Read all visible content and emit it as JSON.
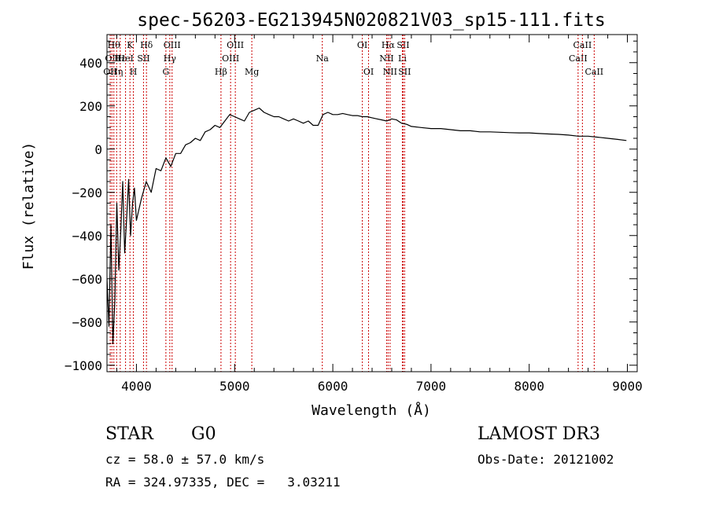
{
  "chart_data": {
    "type": "line",
    "title": "spec-56203-EG213945N020821V03_sp15-111.fits",
    "xlabel": "Wavelength (Å)",
    "ylabel": "Flux (relative)",
    "xlim": [
      3700,
      9100
    ],
    "ylim": [
      -1030,
      530
    ],
    "xticks": [
      4000,
      5000,
      6000,
      7000,
      8000,
      9000
    ],
    "yticks": [
      -1000,
      -800,
      -600,
      -400,
      -200,
      0,
      200,
      400
    ],
    "grid": false,
    "line_color": "#000000",
    "marker_color": "#cc0000",
    "series": [
      {
        "name": "",
        "x": [
          3700,
          3720,
          3740,
          3760,
          3780,
          3800,
          3820,
          3840,
          3860,
          3880,
          3900,
          3920,
          3940,
          3960,
          3980,
          4000,
          4050,
          4100,
          4150,
          4200,
          4250,
          4300,
          4350,
          4400,
          4450,
          4500,
          4550,
          4600,
          4650,
          4700,
          4750,
          4800,
          4850,
          4900,
          4950,
          5000,
          5050,
          5100,
          5150,
          5200,
          5250,
          5300,
          5350,
          5400,
          5450,
          5500,
          5550,
          5600,
          5650,
          5700,
          5750,
          5800,
          5850,
          5900,
          5950,
          6000,
          6050,
          6100,
          6150,
          6200,
          6250,
          6300,
          6350,
          6400,
          6450,
          6500,
          6550,
          6600,
          6650,
          6700,
          6750,
          6800,
          6900,
          7000,
          7100,
          7200,
          7300,
          7400,
          7500,
          7600,
          7700,
          7800,
          7900,
          8000,
          8100,
          8200,
          8300,
          8400,
          8500,
          8600,
          8700,
          8800,
          8900,
          8990
        ],
        "y": [
          -600,
          -820,
          -350,
          -900,
          -700,
          -250,
          -560,
          -380,
          -150,
          -480,
          -320,
          -140,
          -400,
          -250,
          -180,
          -330,
          -230,
          -150,
          -200,
          -90,
          -100,
          -40,
          -80,
          -20,
          -20,
          20,
          30,
          50,
          40,
          80,
          90,
          110,
          100,
          130,
          160,
          150,
          140,
          130,
          170,
          180,
          190,
          170,
          160,
          150,
          150,
          140,
          130,
          140,
          130,
          120,
          130,
          110,
          110,
          160,
          170,
          160,
          160,
          165,
          160,
          155,
          155,
          150,
          150,
          145,
          140,
          135,
          130,
          140,
          135,
          120,
          115,
          105,
          100,
          95,
          95,
          90,
          85,
          85,
          80,
          80,
          78,
          76,
          75,
          75,
          72,
          70,
          68,
          65,
          60,
          60,
          55,
          50,
          45,
          40
        ]
      }
    ],
    "line_markers": [
      {
        "x": 3733,
        "label": "OII",
        "row": 2
      },
      {
        "x": 3750,
        "label": "OII",
        "row": 1
      },
      {
        "x": 3770,
        "label": "Hθ",
        "row": 0
      },
      {
        "x": 3798,
        "label": "Hη",
        "row": 2
      },
      {
        "x": 3835,
        "label": "Hε",
        "row": 1
      },
      {
        "x": 3889,
        "label": "HeI",
        "row": 1
      },
      {
        "x": 3934,
        "label": "K",
        "row": 0
      },
      {
        "x": 3969,
        "label": "H",
        "row": 2
      },
      {
        "x": 4072,
        "label": "SII",
        "row": 1
      },
      {
        "x": 4102,
        "label": "Hδ",
        "row": 0
      },
      {
        "x": 4300,
        "label": "G",
        "row": 2
      },
      {
        "x": 4340,
        "label": "Hγ",
        "row": 1
      },
      {
        "x": 4363,
        "label": "OIII",
        "row": 0
      },
      {
        "x": 4861,
        "label": "Hβ",
        "row": 2
      },
      {
        "x": 4959,
        "label": "OIII",
        "row": 1
      },
      {
        "x": 5007,
        "label": "OIII",
        "row": 0
      },
      {
        "x": 5175,
        "label": "Mg",
        "row": 2
      },
      {
        "x": 5893,
        "label": "Na",
        "row": 1
      },
      {
        "x": 6300,
        "label": "OI",
        "row": 0
      },
      {
        "x": 6364,
        "label": "OI",
        "row": 2
      },
      {
        "x": 6548,
        "label": "NII",
        "row": 1
      },
      {
        "x": 6563,
        "label": "Hα",
        "row": 0
      },
      {
        "x": 6583,
        "label": "NII",
        "row": 2
      },
      {
        "x": 6708,
        "label": "Li",
        "row": 1
      },
      {
        "x": 6716,
        "label": "SII",
        "row": 0
      },
      {
        "x": 6731,
        "label": "SII",
        "row": 2
      },
      {
        "x": 8498,
        "label": "CaII",
        "row": 1
      },
      {
        "x": 8542,
        "label": "CaII",
        "row": 0
      },
      {
        "x": 8662,
        "label": "CaII",
        "row": 2
      }
    ]
  },
  "info": {
    "class": "STAR",
    "subclass": "G0",
    "survey": "LAMOST DR3",
    "cz": "cz = 58.0 ± 57.0 km/s",
    "obs_date": "Obs-Date: 20121002",
    "coords": "RA = 324.97335, DEC =   3.03211"
  }
}
